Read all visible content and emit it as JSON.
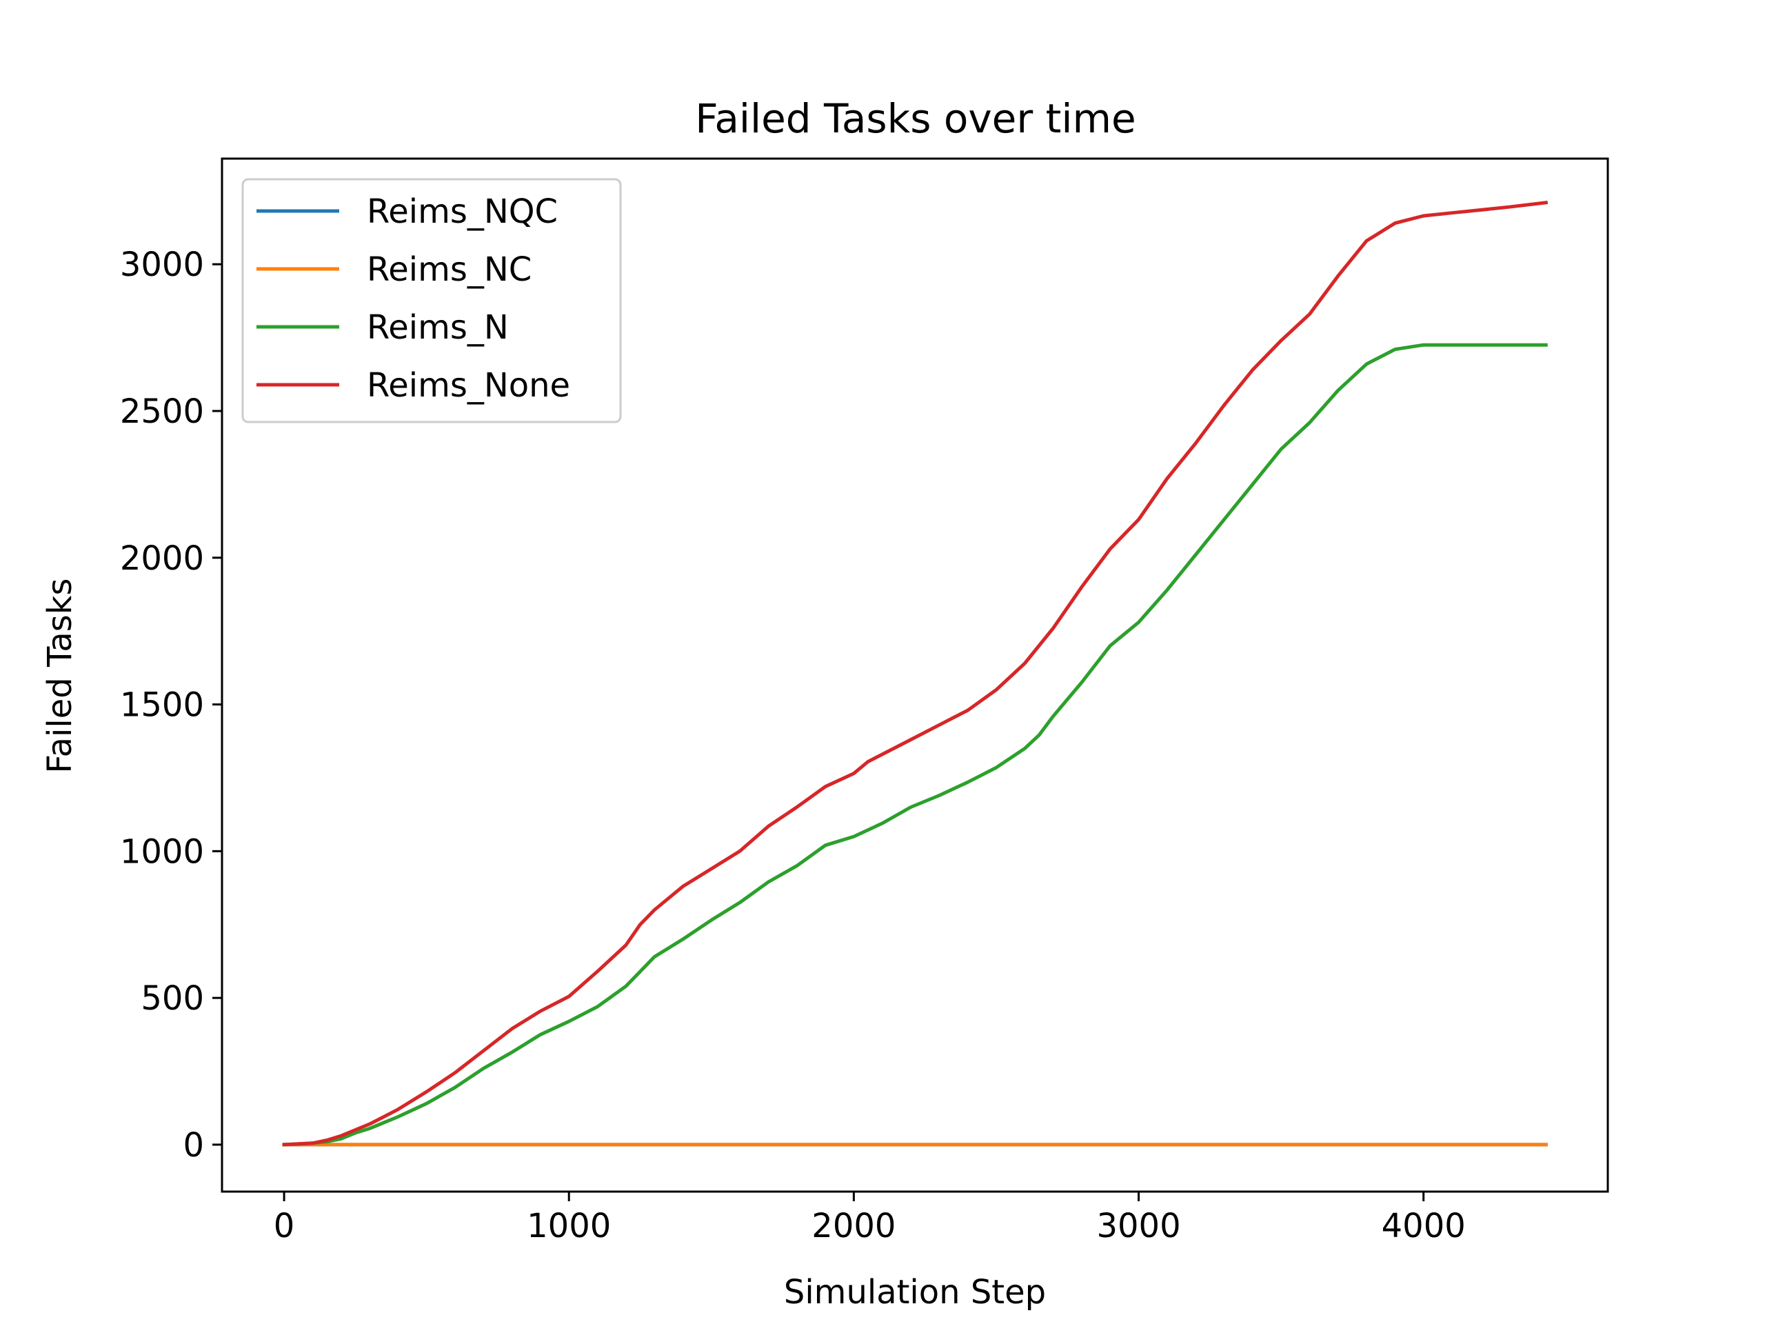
{
  "chart_data": {
    "type": "line",
    "title": "Failed Tasks over time",
    "xlabel": "Simulation Step",
    "ylabel": "Failed Tasks",
    "xlim": [
      -218,
      4647
    ],
    "ylim": [
      -160,
      3360
    ],
    "xticks": [
      0,
      1000,
      2000,
      3000,
      4000
    ],
    "yticks": [
      0,
      500,
      1000,
      1500,
      2000,
      2500,
      3000
    ],
    "grid": false,
    "legend": {
      "placement": "upper-left"
    },
    "series": [
      {
        "name": "Reims_NQC",
        "color": "#1f77b4",
        "x": [
          0,
          4430
        ],
        "y": [
          0,
          0
        ]
      },
      {
        "name": "Reims_NC",
        "color": "#ff7f0e",
        "x": [
          0,
          4430
        ],
        "y": [
          0,
          0
        ]
      },
      {
        "name": "Reims_N",
        "color": "#2ca02c",
        "x": [
          0,
          100,
          150,
          200,
          250,
          300,
          350,
          400,
          500,
          600,
          700,
          800,
          900,
          1000,
          1100,
          1200,
          1300,
          1400,
          1500,
          1600,
          1700,
          1800,
          1900,
          2000,
          2100,
          2200,
          2300,
          2400,
          2500,
          2600,
          2650,
          2700,
          2800,
          2900,
          3000,
          3100,
          3200,
          3300,
          3400,
          3500,
          3600,
          3700,
          3800,
          3900,
          4000,
          4100,
          4200,
          4300,
          4430
        ],
        "y": [
          0,
          5,
          10,
          20,
          40,
          55,
          75,
          95,
          140,
          195,
          260,
          315,
          375,
          420,
          470,
          540,
          640,
          700,
          765,
          825,
          895,
          950,
          1020,
          1050,
          1095,
          1150,
          1190,
          1235,
          1285,
          1350,
          1395,
          1460,
          1575,
          1700,
          1780,
          1890,
          2010,
          2130,
          2250,
          2370,
          2460,
          2570,
          2660,
          2710,
          2725,
          2725,
          2725,
          2725,
          2725
        ]
      },
      {
        "name": "Reims_None",
        "color": "#d62728",
        "x": [
          0,
          100,
          150,
          200,
          250,
          300,
          350,
          400,
          500,
          600,
          700,
          800,
          900,
          1000,
          1100,
          1200,
          1250,
          1300,
          1400,
          1500,
          1600,
          1700,
          1800,
          1900,
          2000,
          2050,
          2100,
          2200,
          2300,
          2400,
          2500,
          2600,
          2700,
          2800,
          2900,
          3000,
          3100,
          3200,
          3300,
          3400,
          3500,
          3600,
          3700,
          3800,
          3900,
          4000,
          4100,
          4200,
          4300,
          4430
        ],
        "y": [
          0,
          5,
          15,
          30,
          50,
          70,
          95,
          120,
          180,
          245,
          320,
          395,
          455,
          505,
          590,
          680,
          750,
          800,
          880,
          940,
          1000,
          1085,
          1150,
          1220,
          1265,
          1305,
          1330,
          1380,
          1430,
          1480,
          1550,
          1640,
          1760,
          1900,
          2030,
          2130,
          2270,
          2390,
          2520,
          2640,
          2740,
          2830,
          2960,
          3080,
          3140,
          3165,
          3175,
          3185,
          3195,
          3210
        ]
      }
    ]
  }
}
